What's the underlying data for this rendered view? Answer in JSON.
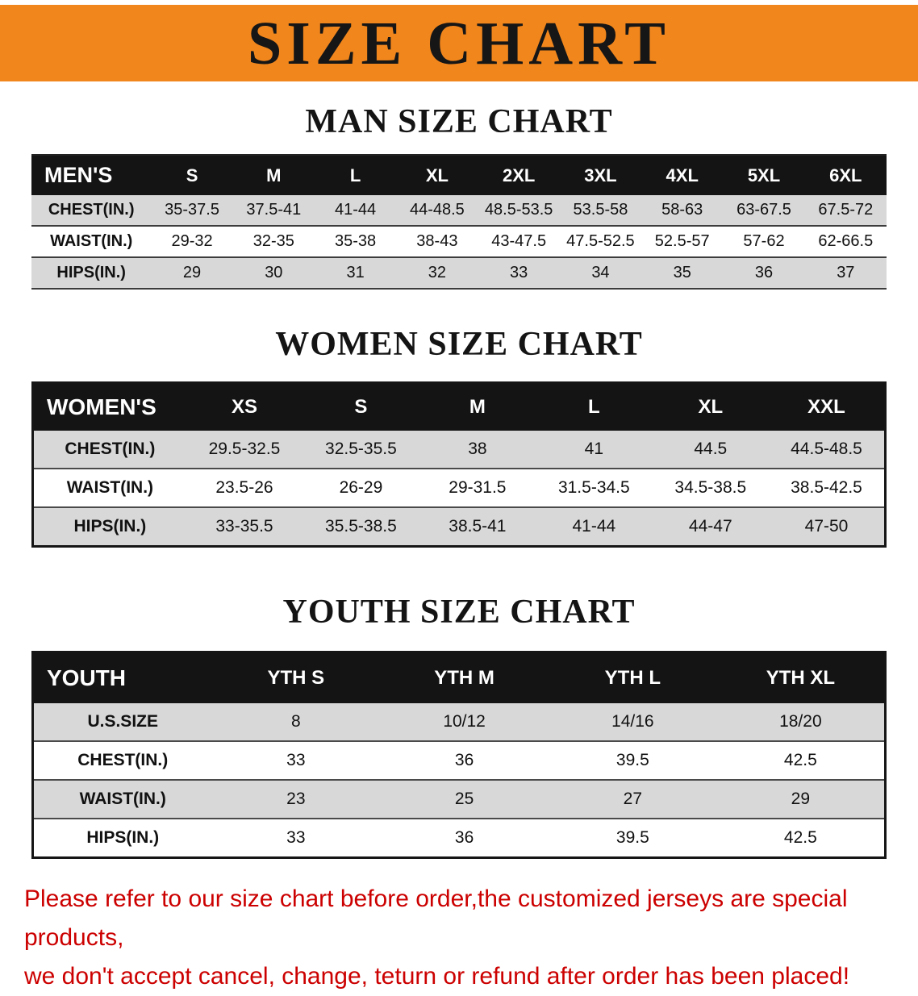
{
  "banner": {
    "title": "SIZE CHART"
  },
  "colors": {
    "banner_bg": "#F1861D",
    "header_bg": "#141414",
    "row_gray": "#D8D8D8",
    "disclaimer_red": "#CC0000"
  },
  "sections": [
    {
      "id": "men",
      "heading": "MAN SIZE CHART",
      "table": {
        "header": [
          "MEN'S",
          "S",
          "M",
          "L",
          "XL",
          "2XL",
          "3XL",
          "4XL",
          "5XL",
          "6XL"
        ],
        "rows": [
          [
            "CHEST(IN.)",
            "35-37.5",
            "37.5-41",
            "41-44",
            "44-48.5",
            "48.5-53.5",
            "53.5-58",
            "58-63",
            "63-67.5",
            "67.5-72"
          ],
          [
            "WAIST(IN.)",
            "29-32",
            "32-35",
            "35-38",
            "38-43",
            "43-47.5",
            "47.5-52.5",
            "52.5-57",
            "57-62",
            "62-66.5"
          ],
          [
            "HIPS(IN.)",
            "29",
            "30",
            "31",
            "32",
            "33",
            "34",
            "35",
            "36",
            "37"
          ]
        ]
      }
    },
    {
      "id": "women",
      "heading": "WOMEN SIZE CHART",
      "table": {
        "header": [
          "WOMEN'S",
          "XS",
          "S",
          "M",
          "L",
          "XL",
          "XXL"
        ],
        "rows": [
          [
            "CHEST(IN.)",
            "29.5-32.5",
            "32.5-35.5",
            "38",
            "41",
            "44.5",
            "44.5-48.5"
          ],
          [
            "WAIST(IN.)",
            "23.5-26",
            "26-29",
            "29-31.5",
            "31.5-34.5",
            "34.5-38.5",
            "38.5-42.5"
          ],
          [
            "HIPS(IN.)",
            "33-35.5",
            "35.5-38.5",
            "38.5-41",
            "41-44",
            "44-47",
            "47-50"
          ]
        ]
      }
    },
    {
      "id": "youth",
      "heading": "YOUTH SIZE CHART",
      "table": {
        "header": [
          "YOUTH",
          "YTH S",
          "YTH M",
          "YTH L",
          "YTH XL"
        ],
        "rows": [
          [
            "U.S.SIZE",
            "8",
            "10/12",
            "14/16",
            "18/20"
          ],
          [
            "CHEST(IN.)",
            "33",
            "36",
            "39.5",
            "42.5"
          ],
          [
            "WAIST(IN.)",
            "23",
            "25",
            "27",
            "29"
          ],
          [
            "HIPS(IN.)",
            "33",
            "36",
            "39.5",
            "42.5"
          ]
        ]
      }
    }
  ],
  "disclaimer": {
    "line1": "Please refer to our size chart before order,the customized jerseys are special products,",
    "line2": "we don't accept cancel, change, teturn or refund after order has been placed!"
  }
}
